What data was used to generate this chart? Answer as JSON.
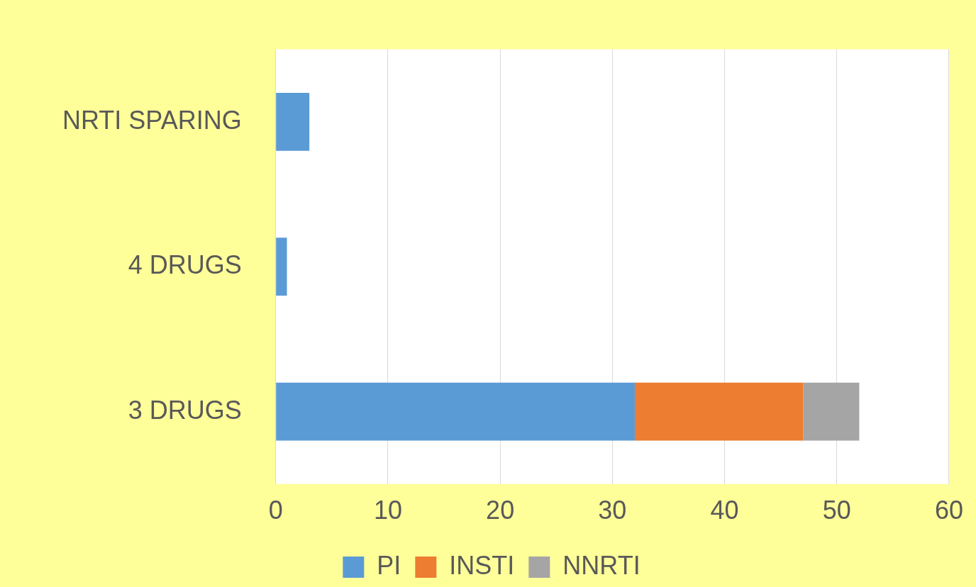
{
  "chart_data": {
    "type": "bar",
    "orientation": "horizontal",
    "stacked": true,
    "categories": [
      "NRTI SPARING",
      "4 DRUGS",
      "3 DRUGS"
    ],
    "series": [
      {
        "name": "PI",
        "color": "#5b9bd5",
        "values": [
          3,
          1,
          32
        ]
      },
      {
        "name": "INSTI",
        "color": "#ed7d31",
        "values": [
          null,
          null,
          15
        ]
      },
      {
        "name": "NNRTI",
        "color": "#a5a5a5",
        "values": [
          null,
          null,
          5
        ]
      }
    ],
    "xlim": [
      0,
      60
    ],
    "xticks": [
      0,
      10,
      20,
      30,
      40,
      50,
      60
    ],
    "grid": "x",
    "legend": "bottom"
  }
}
